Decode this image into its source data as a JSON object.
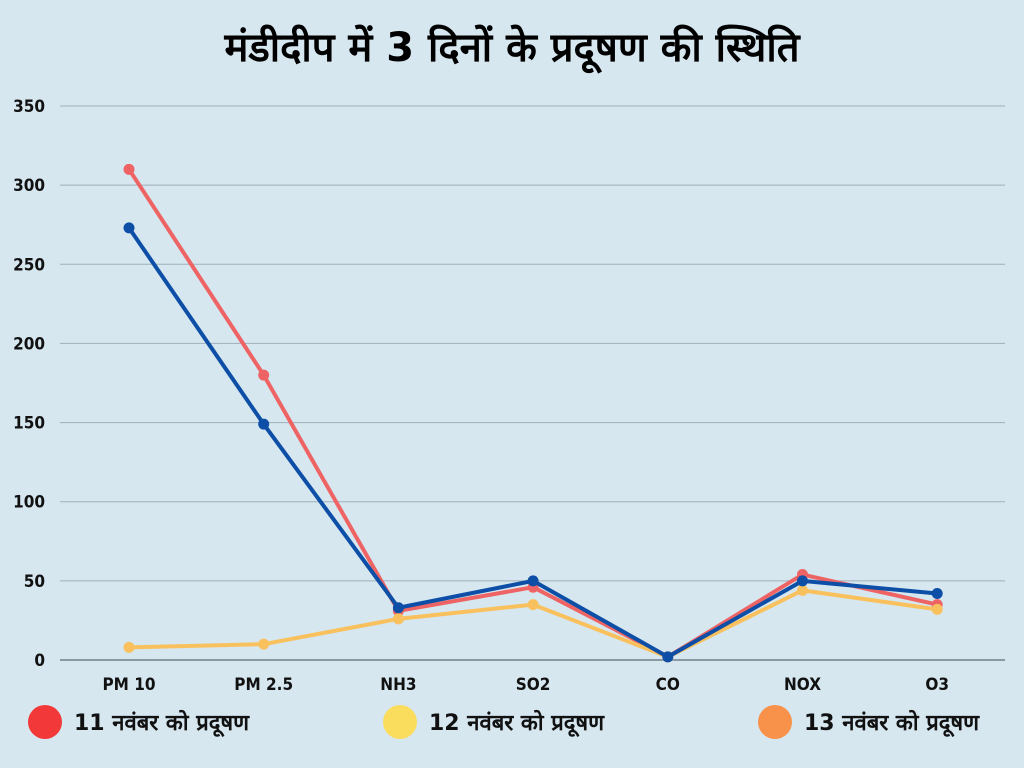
{
  "chart_data": {
    "type": "line",
    "title": "मंडीदीप में 3 दिनों के प्रदूषण की स्थिति",
    "categories": [
      "PM 10",
      "PM 2.5",
      "NH3",
      "SO2",
      "CO",
      "NOX",
      "O3"
    ],
    "ylim": [
      0,
      350
    ],
    "yticks": [
      0,
      50,
      100,
      150,
      200,
      250,
      300,
      350
    ],
    "grid": true,
    "legend_placement": "bottom",
    "series": [
      {
        "color": "#ee6464",
        "values": [
          310,
          180,
          31,
          46,
          2,
          54,
          35
        ]
      },
      {
        "color": "#f9c15e",
        "values": [
          8,
          10,
          26,
          35,
          2,
          44,
          32
        ]
      },
      {
        "color": "#0d4ea6",
        "values": [
          273,
          149,
          33,
          50,
          2,
          50,
          42
        ]
      }
    ],
    "legend": [
      {
        "label": "11 नवंबर को प्रदूषण",
        "color": "#f23838"
      },
      {
        "label": "12 नवंबर को प्रदूषण",
        "color": "#fadd5c"
      },
      {
        "label": "13 नवंबर को प्रदूषण",
        "color": "#f8924a"
      }
    ]
  }
}
